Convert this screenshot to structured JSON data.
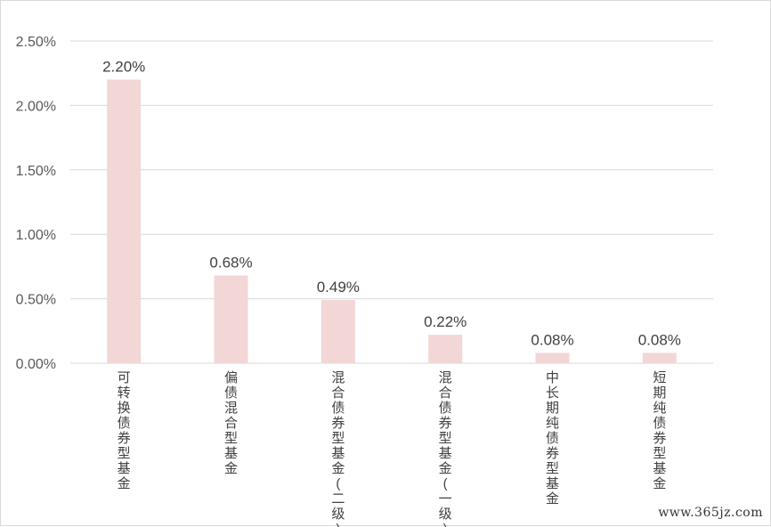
{
  "chart_data": {
    "type": "bar",
    "categories": [
      "可转换债券型基金",
      "偏债混合型基金",
      "混合债券型基金(二级)",
      "混合债券型基金(一级)",
      "中长期纯债券型基金",
      "短期纯债券型基金"
    ],
    "values": [
      2.2,
      0.68,
      0.49,
      0.22,
      0.08,
      0.08
    ],
    "data_labels": [
      "2.20%",
      "0.68%",
      "0.49%",
      "0.22%",
      "0.08%",
      "0.08%"
    ],
    "yticks": [
      "0.00%",
      "0.50%",
      "1.00%",
      "1.50%",
      "2.00%",
      "2.50%"
    ],
    "ytick_values": [
      0,
      0.5,
      1.0,
      1.5,
      2.0,
      2.5
    ],
    "ylim": [
      0,
      2.5
    ],
    "grid": true,
    "legend": "none",
    "title": "",
    "xlabel": "",
    "ylabel": "",
    "bar_color": "#f2d7d6",
    "grid_color": "#d9d9d9"
  },
  "watermark": "www.365jz.com"
}
